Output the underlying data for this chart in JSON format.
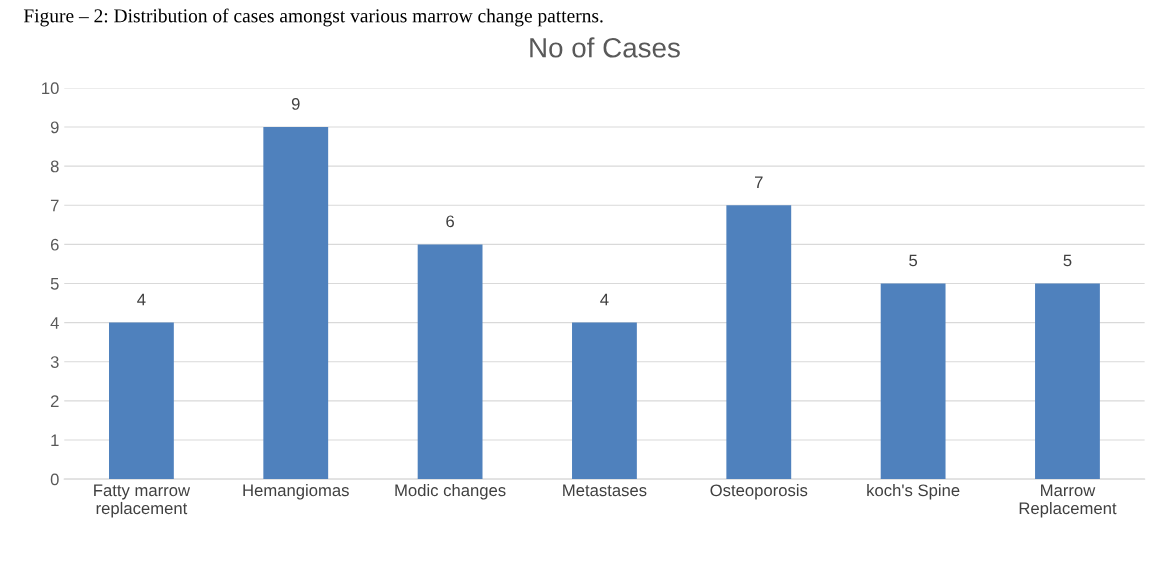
{
  "chart_data": {
    "type": "bar",
    "title": "No of Cases",
    "categories": [
      "Fatty marrow\nreplacement",
      "Hemangiomas",
      "Modic changes",
      "Metastases",
      "Osteoporosis",
      "koch's Spine",
      "Marrow\nReplacement"
    ],
    "values": [
      4,
      9,
      6,
      4,
      7,
      5,
      5
    ],
    "color": "#4f81bd",
    "ylim": [
      0,
      10
    ],
    "yticks": [
      0,
      1,
      2,
      3,
      4,
      5,
      6,
      7,
      8,
      9,
      10
    ],
    "grid": "y",
    "data_labels": true,
    "annotations": [
      "Figure – 2: Distribution of cases amongst various marrow change patterns."
    ]
  }
}
